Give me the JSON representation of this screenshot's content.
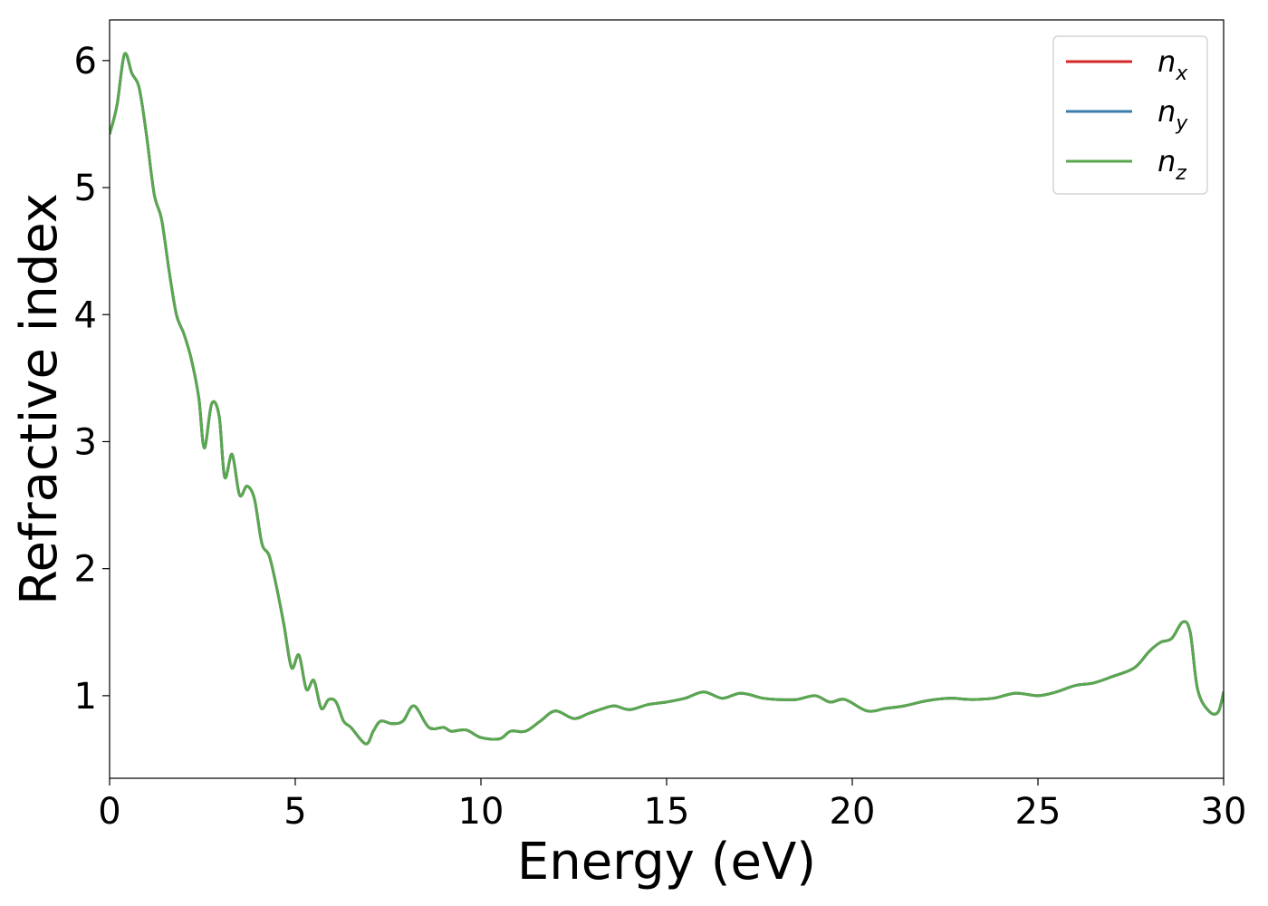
{
  "chart_data": {
    "type": "line",
    "title": "",
    "xlabel": "Energy (eV)",
    "ylabel": "Refractive index",
    "xlim": [
      0,
      30
    ],
    "ylim": [
      0.35,
      6.32
    ],
    "xticks": [
      0,
      5,
      10,
      15,
      20,
      25,
      30
    ],
    "yticks": [
      1,
      2,
      3,
      4,
      5,
      6
    ],
    "grid": false,
    "legend_position": "top-right",
    "x": [
      0,
      0.2,
      0.4,
      0.6,
      0.8,
      1.0,
      1.2,
      1.4,
      1.6,
      1.8,
      2.0,
      2.2,
      2.4,
      2.55,
      2.75,
      2.95,
      3.1,
      3.3,
      3.5,
      3.7,
      3.9,
      4.1,
      4.3,
      4.5,
      4.7,
      4.9,
      5.1,
      5.3,
      5.5,
      5.7,
      5.9,
      6.1,
      6.3,
      6.5,
      6.9,
      7.1,
      7.3,
      7.6,
      7.9,
      8.2,
      8.6,
      9.0,
      9.2,
      9.6,
      10.0,
      10.5,
      10.8,
      11.2,
      11.6,
      12.0,
      12.5,
      12.9,
      13.3,
      13.6,
      14.0,
      14.5,
      15.0,
      15.5,
      16.0,
      16.5,
      17.0,
      17.6,
      18.0,
      18.5,
      19.0,
      19.4,
      19.8,
      20.4,
      20.9,
      21.4,
      22.0,
      22.6,
      23.2,
      23.8,
      24.4,
      25.0,
      25.5,
      26.0,
      26.5,
      27.0,
      27.6,
      28.0,
      28.3,
      28.6,
      28.9,
      29.1,
      29.3,
      29.6,
      29.85,
      30.0
    ],
    "series": [
      {
        "name": "n",
        "sub": "x",
        "color": "#d62728",
        "values": [
          5.42,
          5.65,
          6.05,
          5.9,
          5.78,
          5.4,
          4.95,
          4.75,
          4.35,
          4.0,
          3.85,
          3.65,
          3.35,
          2.95,
          3.3,
          3.2,
          2.72,
          2.9,
          2.58,
          2.65,
          2.55,
          2.2,
          2.1,
          1.85,
          1.55,
          1.22,
          1.32,
          1.05,
          1.12,
          0.9,
          0.97,
          0.95,
          0.8,
          0.75,
          0.62,
          0.72,
          0.8,
          0.78,
          0.8,
          0.92,
          0.75,
          0.75,
          0.72,
          0.73,
          0.67,
          0.66,
          0.72,
          0.72,
          0.8,
          0.88,
          0.82,
          0.86,
          0.9,
          0.92,
          0.89,
          0.93,
          0.95,
          0.98,
          1.03,
          0.98,
          1.02,
          0.98,
          0.97,
          0.97,
          1.0,
          0.95,
          0.97,
          0.88,
          0.9,
          0.92,
          0.96,
          0.98,
          0.97,
          0.98,
          1.02,
          1.0,
          1.03,
          1.08,
          1.1,
          1.15,
          1.22,
          1.35,
          1.42,
          1.45,
          1.58,
          1.5,
          1.05,
          0.88,
          0.87,
          1.03
        ]
      },
      {
        "name": "n",
        "sub": "y",
        "color": "#3a7dab",
        "values": [
          5.42,
          5.65,
          6.05,
          5.9,
          5.78,
          5.4,
          4.95,
          4.75,
          4.35,
          4.0,
          3.85,
          3.65,
          3.35,
          2.95,
          3.3,
          3.2,
          2.72,
          2.9,
          2.58,
          2.65,
          2.55,
          2.2,
          2.1,
          1.85,
          1.55,
          1.22,
          1.32,
          1.05,
          1.12,
          0.9,
          0.97,
          0.95,
          0.8,
          0.75,
          0.62,
          0.72,
          0.8,
          0.78,
          0.8,
          0.92,
          0.75,
          0.75,
          0.72,
          0.73,
          0.67,
          0.66,
          0.72,
          0.72,
          0.8,
          0.88,
          0.82,
          0.86,
          0.9,
          0.92,
          0.89,
          0.93,
          0.95,
          0.98,
          1.03,
          0.98,
          1.02,
          0.98,
          0.97,
          0.97,
          1.0,
          0.95,
          0.97,
          0.88,
          0.9,
          0.92,
          0.96,
          0.98,
          0.97,
          0.98,
          1.02,
          1.0,
          1.03,
          1.08,
          1.1,
          1.15,
          1.22,
          1.35,
          1.42,
          1.45,
          1.58,
          1.5,
          1.05,
          0.88,
          0.87,
          1.03
        ]
      },
      {
        "name": "n",
        "sub": "z",
        "color": "#59a84f",
        "values": [
          5.42,
          5.65,
          6.05,
          5.9,
          5.78,
          5.4,
          4.95,
          4.75,
          4.35,
          4.0,
          3.85,
          3.65,
          3.35,
          2.95,
          3.3,
          3.2,
          2.72,
          2.9,
          2.58,
          2.65,
          2.55,
          2.2,
          2.1,
          1.85,
          1.55,
          1.22,
          1.32,
          1.05,
          1.12,
          0.9,
          0.97,
          0.95,
          0.8,
          0.75,
          0.62,
          0.72,
          0.8,
          0.78,
          0.8,
          0.92,
          0.75,
          0.75,
          0.72,
          0.73,
          0.67,
          0.66,
          0.72,
          0.72,
          0.8,
          0.88,
          0.82,
          0.86,
          0.9,
          0.92,
          0.89,
          0.93,
          0.95,
          0.98,
          1.03,
          0.98,
          1.02,
          0.98,
          0.97,
          0.97,
          1.0,
          0.95,
          0.97,
          0.88,
          0.9,
          0.92,
          0.96,
          0.98,
          0.97,
          0.98,
          1.02,
          1.0,
          1.03,
          1.08,
          1.1,
          1.15,
          1.22,
          1.35,
          1.42,
          1.45,
          1.58,
          1.5,
          1.05,
          0.88,
          0.87,
          1.03
        ]
      }
    ]
  }
}
